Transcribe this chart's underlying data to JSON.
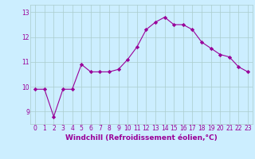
{
  "x": [
    0,
    1,
    2,
    3,
    4,
    5,
    6,
    7,
    8,
    9,
    10,
    11,
    12,
    13,
    14,
    15,
    16,
    17,
    18,
    19,
    20,
    21,
    22,
    23
  ],
  "y": [
    9.9,
    9.9,
    8.8,
    9.9,
    9.9,
    10.9,
    10.6,
    10.6,
    10.6,
    10.7,
    11.1,
    11.6,
    12.3,
    12.6,
    12.8,
    12.5,
    12.5,
    12.3,
    11.8,
    11.55,
    11.3,
    11.2,
    10.8,
    10.6
  ],
  "line_color": "#990099",
  "marker": "D",
  "marker_size": 2.2,
  "bg_color": "#cceeff",
  "grid_color": "#aacccc",
  "xlabel": "Windchill (Refroidissement éolien,°C)",
  "xlabel_fontsize": 6.5,
  "tick_fontsize": 5.5,
  "ylabel_ticks": [
    9,
    10,
    11,
    12,
    13
  ],
  "xlim": [
    -0.5,
    23.5
  ],
  "ylim": [
    8.5,
    13.3
  ]
}
